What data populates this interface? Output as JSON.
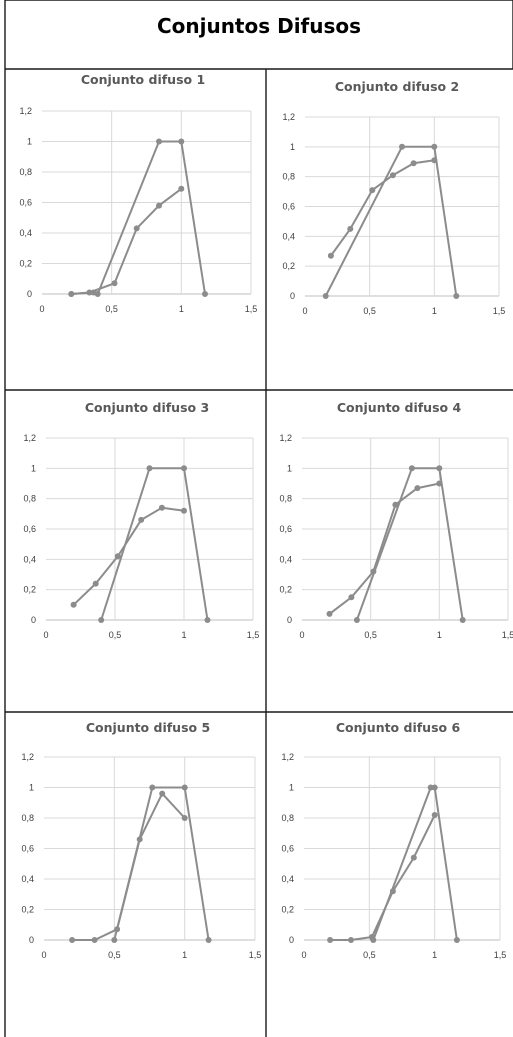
{
  "page": {
    "title": "Conjuntos Difusos"
  },
  "style": {
    "series_color": "#8c8c8c",
    "grid_color": "#d9d9d9",
    "text_color": "#595959"
  },
  "chart_data": [
    {
      "type": "line",
      "title": "Conjunto difuso 1",
      "xlim": [
        0,
        1.5
      ],
      "ylim": [
        0,
        1.2
      ],
      "xticks": [
        0,
        0.5,
        1,
        1.5
      ],
      "xtick_labels": [
        "0",
        "0,5",
        "1",
        "1,5"
      ],
      "yticks": [
        0,
        0.2,
        0.4,
        0.6,
        0.8,
        1,
        1.2
      ],
      "ytick_labels": [
        "0",
        "0,2",
        "0,4",
        "0,6",
        "0,8",
        "1",
        "1,2"
      ],
      "grid": "horizontal",
      "legend": "none",
      "series": [
        {
          "x": [
            0.21,
            0.37,
            0.4,
            0.84,
            1,
            1.17
          ],
          "y": [
            0,
            0.01,
            0,
            1,
            1,
            0
          ]
        },
        {
          "x": [
            0.21,
            0.34,
            0.52,
            0.68,
            0.84,
            1
          ],
          "y": [
            0,
            0.01,
            0.07,
            0.43,
            0.58,
            0.69
          ]
        }
      ]
    },
    {
      "type": "line",
      "title": "Conjunto difuso 2",
      "xlim": [
        0,
        1.5
      ],
      "ylim": [
        0,
        1.2
      ],
      "xticks": [
        0,
        0.5,
        1,
        1.5
      ],
      "xtick_labels": [
        "0",
        "0,5",
        "1",
        "1,5"
      ],
      "yticks": [
        0,
        0.2,
        0.4,
        0.6,
        0.8,
        1,
        1.2
      ],
      "ytick_labels": [
        "0",
        "0,2",
        "0,4",
        "0,6",
        "0,8",
        "1",
        "1,2"
      ],
      "grid": "horizontal",
      "legend": "none",
      "series": [
        {
          "x": [
            0.16,
            0.75,
            1,
            1.17
          ],
          "y": [
            0,
            1,
            1,
            0
          ]
        },
        {
          "x": [
            0.2,
            0.35,
            0.52,
            0.68,
            0.84,
            1
          ],
          "y": [
            0.27,
            0.45,
            0.71,
            0.81,
            0.89,
            0.91
          ]
        }
      ]
    },
    {
      "type": "line",
      "title": "Conjunto difuso 3",
      "xlim": [
        0,
        1.5
      ],
      "ylim": [
        0,
        1.2
      ],
      "xticks": [
        0,
        0.5,
        1,
        1.5
      ],
      "xtick_labels": [
        "0",
        "0,5",
        "1",
        "1,5"
      ],
      "yticks": [
        0,
        0.2,
        0.4,
        0.6,
        0.8,
        1,
        1.2
      ],
      "ytick_labels": [
        "0",
        "0,2",
        "0,4",
        "0,6",
        "0,8",
        "1",
        "1,2"
      ],
      "grid": "horizontal",
      "legend": "none",
      "series": [
        {
          "x": [
            0.4,
            0.75,
            1,
            1.17
          ],
          "y": [
            0,
            1,
            1,
            0
          ]
        },
        {
          "x": [
            0.2,
            0.36,
            0.52,
            0.69,
            0.84,
            1
          ],
          "y": [
            0.1,
            0.24,
            0.42,
            0.66,
            0.74,
            0.72
          ]
        }
      ]
    },
    {
      "type": "line",
      "title": "Conjunto difuso 4",
      "xlim": [
        0,
        1.5
      ],
      "ylim": [
        0,
        1.2
      ],
      "xticks": [
        0,
        0.5,
        1,
        1.5
      ],
      "xtick_labels": [
        "0",
        "0,5",
        "1",
        "1,5"
      ],
      "yticks": [
        0,
        0.2,
        0.4,
        0.6,
        0.8,
        1,
        1.2
      ],
      "ytick_labels": [
        "0",
        "0,2",
        "0,4",
        "0,6",
        "0,8",
        "1",
        "1,2"
      ],
      "grid": "horizontal",
      "legend": "none",
      "series": [
        {
          "x": [
            0.4,
            0.8,
            1,
            1.17
          ],
          "y": [
            0,
            1,
            1,
            0
          ]
        },
        {
          "x": [
            0.2,
            0.36,
            0.52,
            0.68,
            0.84,
            1
          ],
          "y": [
            0.04,
            0.15,
            0.32,
            0.76,
            0.87,
            0.9
          ]
        }
      ]
    },
    {
      "type": "line",
      "title": "Conjunto difuso 5",
      "xlim": [
        0,
        1.5
      ],
      "ylim": [
        0,
        1.2
      ],
      "xticks": [
        0,
        0.5,
        1,
        1.5
      ],
      "xtick_labels": [
        "0",
        "0,5",
        "1",
        "1,5"
      ],
      "yticks": [
        0,
        0.2,
        0.4,
        0.6,
        0.8,
        1,
        1.2
      ],
      "ytick_labels": [
        "0",
        "0,2",
        "0,4",
        "0,6",
        "0,8",
        "1",
        "1,2"
      ],
      "grid": "horizontal",
      "legend": "none",
      "series": [
        {
          "x": [
            0.5,
            0.77,
            1,
            1.17
          ],
          "y": [
            0,
            1,
            1,
            0
          ]
        },
        {
          "x": [
            0.2,
            0.36,
            0.52,
            0.68,
            0.84,
            1
          ],
          "y": [
            0,
            0,
            0.07,
            0.66,
            0.96,
            0.8
          ]
        }
      ]
    },
    {
      "type": "line",
      "title": "Conjunto difuso 6",
      "xlim": [
        0,
        1.5
      ],
      "ylim": [
        0,
        1.2
      ],
      "xticks": [
        0,
        0.5,
        1,
        1.5
      ],
      "xtick_labels": [
        "0",
        "0,5",
        "1",
        "1,5"
      ],
      "yticks": [
        0,
        0.2,
        0.4,
        0.6,
        0.8,
        1,
        1.2
      ],
      "ytick_labels": [
        "0",
        "0,2",
        "0,4",
        "0,6",
        "0,8",
        "1",
        "1,2"
      ],
      "grid": "horizontal",
      "legend": "none",
      "series": [
        {
          "x": [
            0.53,
            0.97,
            1,
            1.17
          ],
          "y": [
            0,
            1,
            1,
            0
          ]
        },
        {
          "x": [
            0.2,
            0.36,
            0.52,
            0.68,
            0.84,
            1
          ],
          "y": [
            0,
            0,
            0.02,
            0.32,
            0.54,
            0.82
          ]
        }
      ]
    }
  ]
}
